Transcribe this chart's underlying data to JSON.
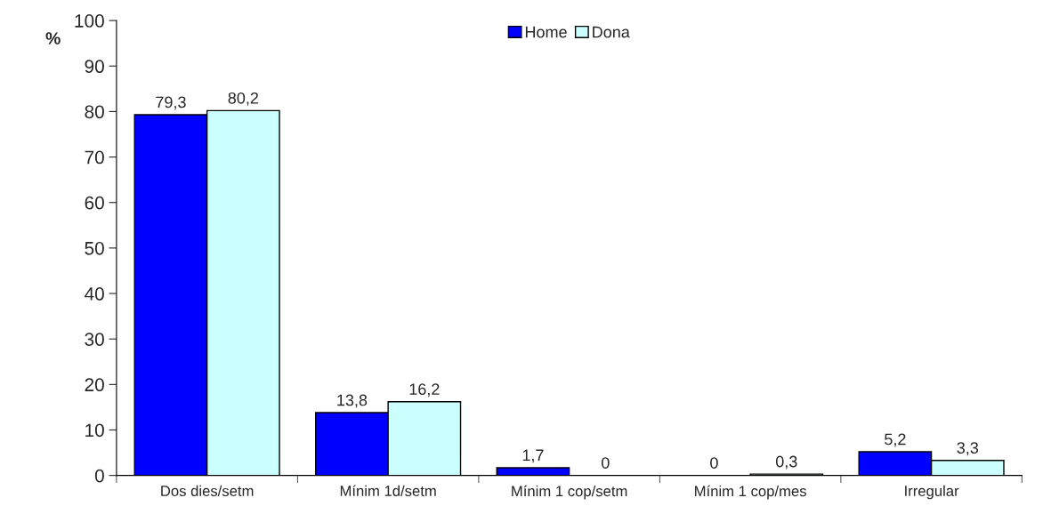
{
  "chart_data": {
    "type": "bar",
    "ylabel": "%",
    "categories": [
      "Dos dies/setm",
      "Mínim 1d/setm",
      "Mínim 1 cop/setm",
      "Mínim 1 cop/mes",
      "Irregular"
    ],
    "series": [
      {
        "name": "Home",
        "color": "#0000ff",
        "values": [
          79.3,
          13.8,
          1.7,
          0,
          5.2
        ],
        "value_labels": [
          "79,3",
          "13,8",
          "1,7",
          "0",
          "5,2"
        ]
      },
      {
        "name": "Dona",
        "color": "#ccffff",
        "values": [
          80.2,
          16.2,
          0,
          0.3,
          3.3
        ],
        "value_labels": [
          "80,2",
          "16,2",
          "0",
          "0,3",
          "3,3"
        ]
      }
    ],
    "ylim": [
      0,
      100
    ],
    "yticks": [
      0,
      10,
      20,
      30,
      40,
      50,
      60,
      70,
      80,
      90,
      100
    ],
    "grid": false,
    "legend": "top"
  }
}
